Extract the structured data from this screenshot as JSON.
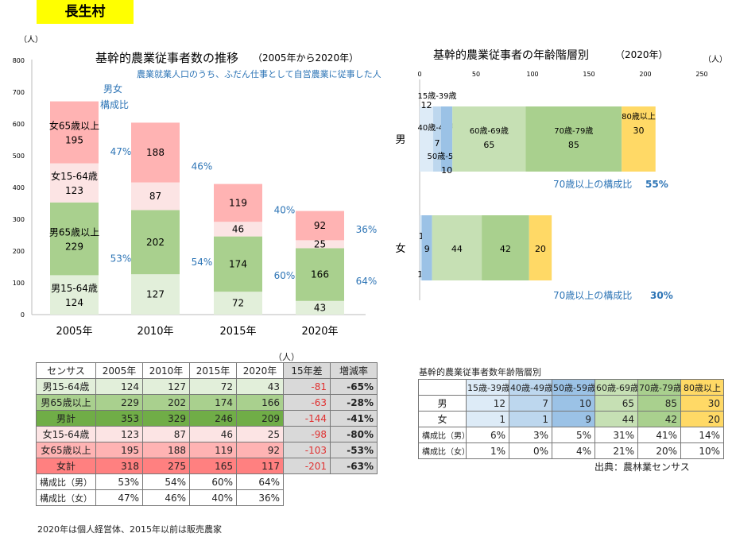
{
  "header": {
    "village": "長生村"
  },
  "left_chart": {
    "title": "基幹的農業従事者数の推移",
    "subtitle": "（2005年から2020年）",
    "note": "農業就業人口のうち、ふだん仕事として自営農業に従事した人",
    "unit": "（人）",
    "legend_label": "男女",
    "legend_label2": "構成比"
  },
  "right_chart": {
    "title": "基幹的農業従事者の年齢階層別",
    "subtitle": "（2020年）",
    "unit": "（人）",
    "ratio_label_m": "70歳以上の構成比",
    "ratio_value_m": "55%",
    "ratio_label_f": "70歳以上の構成比",
    "ratio_value_f": "30%"
  },
  "chart_data": [
    {
      "type": "bar",
      "stacked": true,
      "title": "基幹的農業従事者数の推移",
      "categories": [
        "2005年",
        "2010年",
        "2015年",
        "2020年"
      ],
      "ylim": [
        0,
        800
      ],
      "yticks": [
        0,
        100,
        200,
        300,
        400,
        500,
        600,
        700,
        800
      ],
      "series": [
        {
          "name": "男15-64歳",
          "values": [
            124,
            127,
            72,
            43
          ],
          "color": "#e2efda"
        },
        {
          "name": "男65歳以上",
          "values": [
            229,
            202,
            174,
            166
          ],
          "color": "#a9d08e"
        },
        {
          "name": "女15-64歳",
          "values": [
            123,
            87,
            46,
            25
          ],
          "color": "#fce4e4"
        },
        {
          "name": "女65歳以上",
          "values": [
            195,
            188,
            119,
            92
          ],
          "color": "#ffb3b3"
        }
      ],
      "ratio_m": [
        "53%",
        "54%",
        "60%",
        "64%"
      ],
      "ratio_f": [
        "47%",
        "46%",
        "40%",
        "36%"
      ]
    },
    {
      "type": "bar",
      "orientation": "horizontal",
      "stacked": true,
      "title": "基幹的農業従事者の年齢階層別",
      "categories": [
        "男",
        "女"
      ],
      "xlim": [
        0,
        250
      ],
      "xticks": [
        0,
        50,
        100,
        150,
        200,
        250
      ],
      "series": [
        {
          "name": "15歳-39歳",
          "values": [
            12,
            1
          ],
          "color": "#ddebf7"
        },
        {
          "name": "40歳-49歳",
          "values": [
            7,
            1
          ],
          "color": "#bdd7ee"
        },
        {
          "name": "50歳-59歳",
          "values": [
            10,
            9
          ],
          "color": "#9bc2e6"
        },
        {
          "name": "60歳-69歳",
          "values": [
            65,
            44
          ],
          "color": "#c6e0b4"
        },
        {
          "name": "70歳-79歳",
          "values": [
            85,
            42
          ],
          "color": "#a9d08e"
        },
        {
          "name": "80歳以上",
          "values": [
            30,
            20
          ],
          "color": "#ffd966"
        }
      ]
    }
  ],
  "census_table": {
    "unit": "（人）",
    "header": [
      "センサス",
      "2005年",
      "2010年",
      "2015年",
      "2020年",
      "15年差",
      "増減率"
    ],
    "rows": [
      {
        "label": "男15-64歳",
        "values": [
          "124",
          "127",
          "72",
          "43"
        ],
        "diff": "-81",
        "rate": "-65%",
        "color": "#e2efda"
      },
      {
        "label": "男65歳以上",
        "values": [
          "229",
          "202",
          "174",
          "166"
        ],
        "diff": "-63",
        "rate": "-28%",
        "color": "#a9d08e"
      },
      {
        "label": "男計",
        "values": [
          "353",
          "329",
          "246",
          "209"
        ],
        "diff": "-144",
        "rate": "-41%",
        "color": "#70ad47"
      },
      {
        "label": "女15-64歳",
        "values": [
          "123",
          "87",
          "46",
          "25"
        ],
        "diff": "-98",
        "rate": "-80%",
        "color": "#fce4e4"
      },
      {
        "label": "女65歳以上",
        "values": [
          "195",
          "188",
          "119",
          "92"
        ],
        "diff": "-103",
        "rate": "-53%",
        "color": "#ffb3b3"
      },
      {
        "label": "女計",
        "values": [
          "318",
          "275",
          "165",
          "117"
        ],
        "diff": "-201",
        "rate": "-63%",
        "color": "#ff8080"
      }
    ],
    "ratio_rows": [
      {
        "label": "構成比（男）",
        "values": [
          "53%",
          "54%",
          "60%",
          "64%"
        ]
      },
      {
        "label": "構成比（女）",
        "values": [
          "47%",
          "46%",
          "40%",
          "36%"
        ]
      }
    ]
  },
  "age_table": {
    "title": "基幹的農業従事者数年齢階層別",
    "header": [
      "15歳-39歳",
      "40歳-49歳",
      "50歳-59歳",
      "60歳-69歳",
      "70歳-79歳",
      "80歳以上"
    ],
    "header_colors": [
      "#ddebf7",
      "#bdd7ee",
      "#9bc2e6",
      "#c6e0b4",
      "#a9d08e",
      "#ffd966"
    ],
    "rows": [
      {
        "label": "男",
        "values": [
          "12",
          "7",
          "10",
          "65",
          "85",
          "30"
        ]
      },
      {
        "label": "女",
        "values": [
          "1",
          "1",
          "9",
          "44",
          "42",
          "20"
        ]
      },
      {
        "label": "構成比（男）",
        "values": [
          "6%",
          "3%",
          "5%",
          "31%",
          "41%",
          "14%"
        ]
      },
      {
        "label": "構成比（女）",
        "values": [
          "1%",
          "0%",
          "4%",
          "21%",
          "20%",
          "10%"
        ]
      }
    ],
    "source": "出典：農林業センサス"
  },
  "footer": {
    "note": "2020年は個人経営体、2015年以前は販売農家"
  }
}
